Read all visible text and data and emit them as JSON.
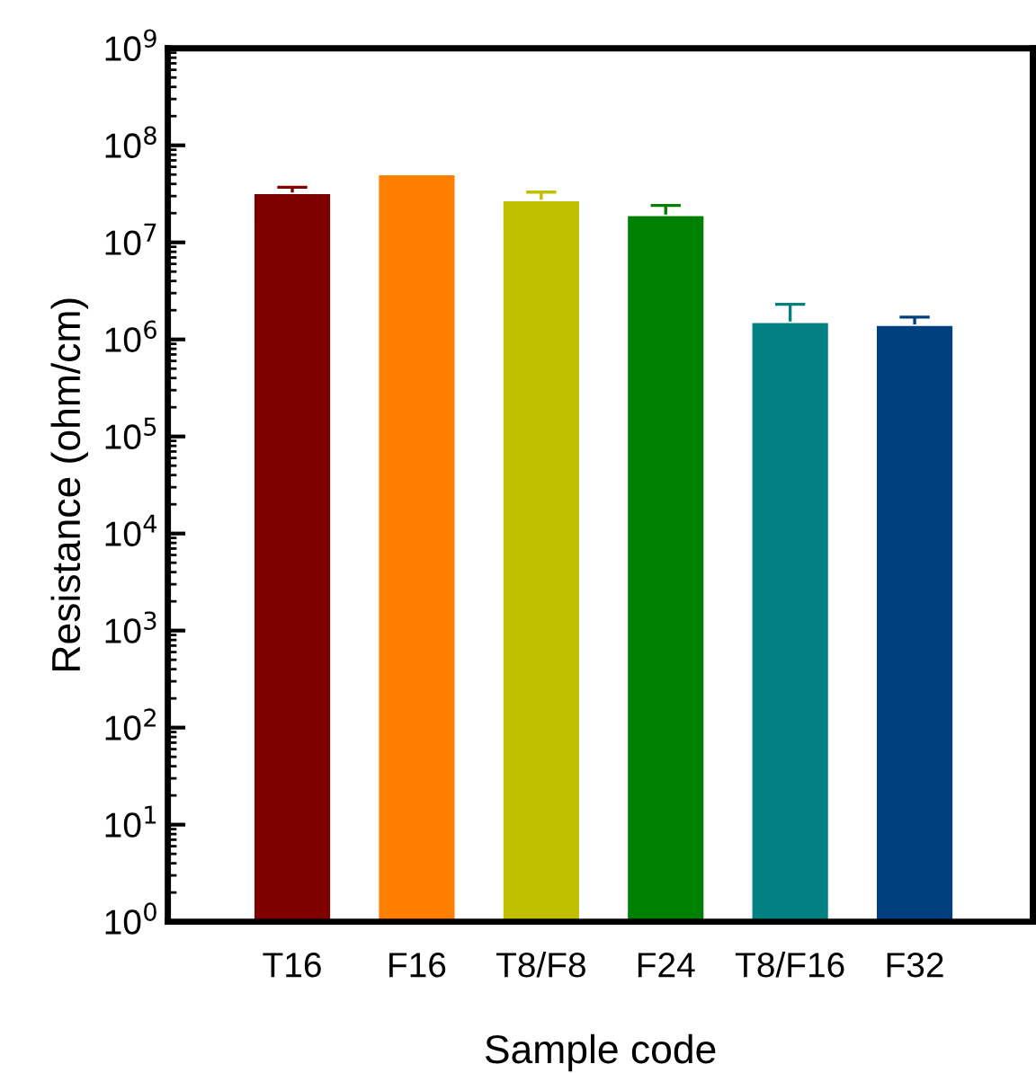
{
  "chart_data": {
    "type": "bar",
    "xlabel": "Sample code",
    "ylabel": "Resistance (ohm/cm)",
    "categories": [
      "T16",
      "F16",
      "T8/F8",
      "F24",
      "T8/F16",
      "F32"
    ],
    "values": [
      32000000,
      50000000,
      27000000,
      19000000,
      1500000,
      1400000
    ],
    "colors": [
      "#800000",
      "#ff8000",
      "#c0c000",
      "#008000",
      "#008080",
      "#003f80"
    ],
    "errors": [
      5000000,
      null,
      6000000,
      5000000,
      800000,
      300000
    ],
    "log": "y",
    "ylim": [
      1,
      1000000000
    ],
    "yticks": [
      {
        "value": 1,
        "label": "10$^{0}$"
      },
      {
        "value": 10,
        "label": "10$^{1}$"
      },
      {
        "value": 100,
        "label": "10$^{2}$"
      },
      {
        "value": 1000,
        "label": "10$^{3}$"
      },
      {
        "value": 10000,
        "label": "10$^{4}$"
      },
      {
        "value": 100000,
        "label": "10$^{5}$"
      },
      {
        "value": 1000000,
        "label": "10$^{6}$"
      },
      {
        "value": 10000000,
        "label": "10$^{7}$"
      },
      {
        "value": 100000000,
        "label": "10$^{8}$"
      },
      {
        "value": 1000000000,
        "label": "10$^{9}$"
      }
    ],
    "grid": false,
    "legend": false
  }
}
